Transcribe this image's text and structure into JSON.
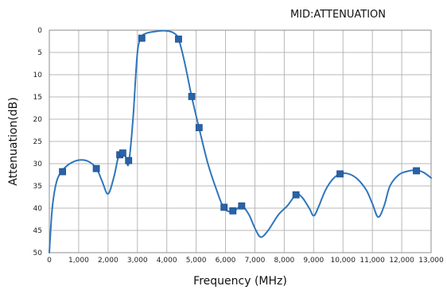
{
  "chart_data": {
    "type": "line",
    "title": "MID:ATTENUATION",
    "xlabel": "Frequency (MHz)",
    "ylabel": "Attenuation(dB)",
    "xlim": [
      0,
      13000
    ],
    "ylim": [
      0,
      50
    ],
    "y_inverted": true,
    "grid": true,
    "x_ticks": [
      "0",
      "1,000",
      "2,000",
      "3,000",
      "4,000",
      "5,000",
      "6,000",
      "7,000",
      "8,000",
      "9,000",
      "10,000",
      "11,000",
      "12,000",
      "13,000"
    ],
    "y_ticks": [
      "0",
      "5",
      "10",
      "15",
      "20",
      "25",
      "30",
      "35",
      "40",
      "45",
      "50"
    ],
    "line_color": "#2f76bd",
    "marker_color": "#2a62a8",
    "series": [
      {
        "curve": [
          [
            0,
            50
          ],
          [
            100,
            40
          ],
          [
            250,
            34
          ],
          [
            450,
            31.5
          ],
          [
            700,
            30
          ],
          [
            1000,
            29.2
          ],
          [
            1300,
            29.4
          ],
          [
            1600,
            31
          ],
          [
            1800,
            34
          ],
          [
            2000,
            36.8
          ],
          [
            2200,
            33
          ],
          [
            2350,
            28.5
          ],
          [
            2450,
            27.8
          ],
          [
            2600,
            28.5
          ],
          [
            2700,
            30
          ],
          [
            2850,
            20
          ],
          [
            3000,
            5
          ],
          [
            3150,
            1.5
          ],
          [
            3300,
            0.7
          ],
          [
            3600,
            0.3
          ],
          [
            3900,
            0.1
          ],
          [
            4200,
            0.5
          ],
          [
            4400,
            2
          ],
          [
            4600,
            7
          ],
          [
            4850,
            15
          ],
          [
            5100,
            22
          ],
          [
            5400,
            30
          ],
          [
            5700,
            36
          ],
          [
            5950,
            40
          ],
          [
            6250,
            40.8
          ],
          [
            6550,
            39.5
          ],
          [
            6800,
            41.5
          ],
          [
            7000,
            44.5
          ],
          [
            7200,
            46.5
          ],
          [
            7450,
            45
          ],
          [
            7800,
            41.5
          ],
          [
            8100,
            39.5
          ],
          [
            8400,
            37
          ],
          [
            8600,
            37.5
          ],
          [
            8850,
            40
          ],
          [
            9000,
            41.7
          ],
          [
            9150,
            40
          ],
          [
            9400,
            36
          ],
          [
            9650,
            33.5
          ],
          [
            9900,
            32.3
          ],
          [
            10200,
            32.3
          ],
          [
            10500,
            33.5
          ],
          [
            10800,
            36
          ],
          [
            11000,
            39
          ],
          [
            11200,
            42
          ],
          [
            11400,
            39.5
          ],
          [
            11600,
            35
          ],
          [
            11900,
            32.5
          ],
          [
            12200,
            31.7
          ],
          [
            12500,
            31.5
          ],
          [
            12750,
            32
          ],
          [
            13000,
            33.2
          ]
        ]
      }
    ],
    "markers": [
      [
        450,
        31.8
      ],
      [
        1600,
        31.1
      ],
      [
        2400,
        28
      ],
      [
        2500,
        27.6
      ],
      [
        2700,
        29.3
      ],
      [
        3150,
        1.8
      ],
      [
        4400,
        2
      ],
      [
        4850,
        14.9
      ],
      [
        5100,
        21.9
      ],
      [
        5950,
        39.8
      ],
      [
        6250,
        40.6
      ],
      [
        6550,
        39.5
      ],
      [
        8400,
        37
      ],
      [
        9900,
        32.3
      ],
      [
        12500,
        31.6
      ]
    ]
  }
}
